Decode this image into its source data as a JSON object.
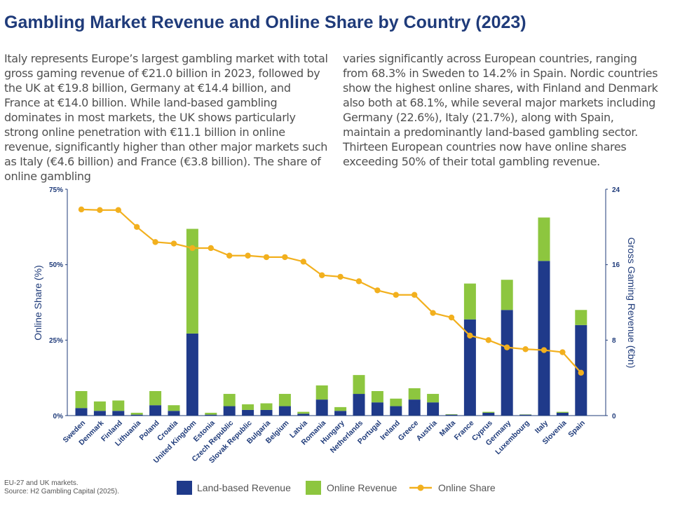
{
  "title": "Gambling Market Revenue and Online Share by Country (2023)",
  "description": {
    "left": "Italy represents Europe’s largest gambling market with total gross gaming revenue of €21.0 billion in 2023, followed by the UK at €19.8 billion, Germany at €14.4 billion, and France at €14.0 billion. While land-based gambling dominates in most markets, the UK shows particularly strong online penetration with €11.1 billion in online revenue, significantly higher than other major markets such as Italy (€4.6 billion) and France (€3.8 billion). The share of online gambling",
    "right": "varies significantly across European countries, ranging from 68.3% in Sweden to 14.2% in Spain. Nordic countries show the highest online shares, with Finland and Denmark also both at 68.1%, while several major markets including Germany (22.6%), Italy (21.7%), along with Spain, maintain a predominantly land-based gambling sector. Thirteen European countries now have online shares exceeding 50% of their total gambling revenue."
  },
  "notes": {
    "scope": "EU-27 and UK markets.",
    "source": "Source: H2 Gambling Capital (2025)."
  },
  "colors": {
    "land": "#1f3a8a",
    "online": "#8dc63f",
    "share": "#f2b01e",
    "axis": "#1f3b7a"
  },
  "chart_data": {
    "type": "bar",
    "stacked": true,
    "categories": [
      "Sweden",
      "Denmark",
      "Finland",
      "Lithuania",
      "Poland",
      "Croatia",
      "United Kingdom",
      "Estonia",
      "Czech Republic",
      "Slovak Republic",
      "Bulgaria",
      "Belgium",
      "Latvia",
      "Romania",
      "Hungary",
      "Netherlands",
      "Portugal",
      "Ireland",
      "Greece",
      "Austria",
      "Malta",
      "France",
      "Cyprus",
      "Germany",
      "Luxembourg",
      "Italy",
      "Slovenia",
      "Spain"
    ],
    "series": [
      {
        "name": "Land-based Revenue",
        "axis": "right",
        "values": [
          0.8,
          0.5,
          0.5,
          0.1,
          1.1,
          0.5,
          8.7,
          0.1,
          1.0,
          0.6,
          0.6,
          1.0,
          0.2,
          1.7,
          0.5,
          2.3,
          1.4,
          1.0,
          1.7,
          1.4,
          0.1,
          10.2,
          0.3,
          11.2,
          0.1,
          16.4,
          0.3,
          9.6
        ]
      },
      {
        "name": "Online Revenue",
        "axis": "right",
        "values": [
          1.8,
          1.0,
          1.1,
          0.2,
          1.5,
          0.6,
          11.1,
          0.2,
          1.3,
          0.6,
          0.7,
          1.3,
          0.2,
          1.5,
          0.4,
          2.0,
          1.2,
          0.8,
          1.2,
          0.9,
          0.05,
          3.8,
          0.1,
          3.2,
          0.03,
          4.6,
          0.1,
          1.6
        ]
      },
      {
        "name": "Online Share",
        "type": "line",
        "axis": "left",
        "unit": "%",
        "values": [
          68.3,
          68.1,
          68.1,
          62.5,
          57.5,
          57.0,
          55.5,
          55.5,
          53.0,
          53.0,
          52.5,
          52.5,
          51.0,
          46.5,
          46.0,
          44.5,
          41.5,
          40.0,
          40.0,
          34.0,
          32.5,
          26.5,
          25.0,
          22.6,
          22.0,
          21.7,
          21.0,
          14.2
        ]
      }
    ],
    "y_left": {
      "label": "Online Share (%)",
      "range": [
        0,
        75
      ],
      "ticks": [
        "0%",
        "25%",
        "50%",
        "75%"
      ],
      "tick_values": [
        0,
        25,
        50,
        75
      ]
    },
    "y_right": {
      "label": "Gross Gaming Revenue (€bn)",
      "range": [
        0,
        24
      ],
      "ticks": [
        "0",
        "8",
        "16",
        "24"
      ],
      "tick_values": [
        0,
        8,
        16,
        24
      ]
    },
    "legend": [
      "Land-based Revenue",
      "Online Revenue",
      "Online Share"
    ],
    "legend_position": "bottom"
  }
}
